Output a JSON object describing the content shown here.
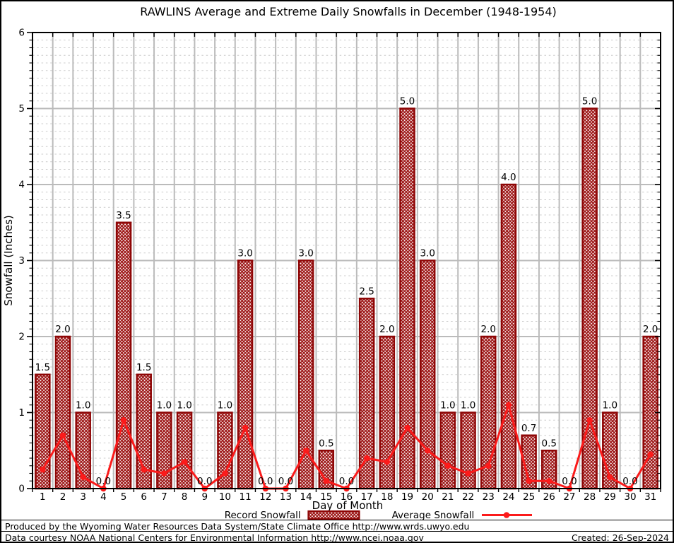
{
  "chart_data": {
    "type": "bar+line",
    "title": "RAWLINS Average and Extreme Daily Snowfalls in December (1948-1954)",
    "xlabel": "Day of Month",
    "ylabel": "Snowfall (Inches)",
    "ylim": [
      0,
      6
    ],
    "y_major_ticks": [
      0,
      1,
      2,
      3,
      4,
      5,
      6
    ],
    "y_minor_step": 0.1,
    "grid": true,
    "legend_position": "bottom",
    "categories": [
      1,
      2,
      3,
      4,
      5,
      6,
      7,
      8,
      9,
      10,
      11,
      12,
      13,
      14,
      15,
      16,
      17,
      18,
      19,
      20,
      21,
      22,
      23,
      24,
      25,
      26,
      27,
      28,
      29,
      30,
      31
    ],
    "series": [
      {
        "name": "Record Snowfall",
        "type": "bar",
        "values": [
          1.5,
          2.0,
          1.0,
          0.0,
          3.5,
          1.5,
          1.0,
          1.0,
          0.0,
          1.0,
          3.0,
          0.0,
          0.0,
          3.0,
          0.5,
          0.0,
          2.5,
          2.0,
          5.0,
          3.0,
          1.0,
          1.0,
          2.0,
          4.0,
          0.7,
          0.5,
          0.0,
          5.0,
          1.0,
          0.0,
          2.0
        ],
        "bar_labels": [
          "1.5",
          "2.0",
          "1.0",
          "0.0",
          "3.5",
          "1.5",
          "1.0",
          "1.0",
          "0.0",
          "1.0",
          "3.0",
          "0.0",
          "0.0",
          "3.0",
          "0.5",
          "0.0",
          "2.5",
          "2.0",
          "5.0",
          "3.0",
          "1.0",
          "1.0",
          "2.0",
          "4.0",
          "0.7",
          "0.5",
          "0.0",
          "5.0",
          "1.0",
          "0.0",
          "2.0"
        ]
      },
      {
        "name": "Average Snowfall",
        "type": "line",
        "values": [
          0.25,
          0.7,
          0.15,
          0.0,
          0.9,
          0.25,
          0.2,
          0.35,
          0.0,
          0.2,
          0.8,
          0.0,
          0.0,
          0.5,
          0.1,
          0.0,
          0.4,
          0.35,
          0.8,
          0.5,
          0.3,
          0.2,
          0.3,
          1.1,
          0.1,
          0.1,
          0.0,
          0.9,
          0.15,
          0.0,
          0.45
        ]
      }
    ],
    "colors": {
      "bar_edge": "#8e0606",
      "bar_hatch": "#9a0f0f",
      "line": "#fb1b1b",
      "grid_major": "#bbbbbb",
      "grid_minor": "#cccccc",
      "axis": "#000000",
      "background": "#ffffff"
    }
  },
  "footer": {
    "line1": "Produced by the Wyoming Water Resources Data System/State Climate Office http://www.wrds.uwyo.edu",
    "line2": "Data courtesy NOAA National Centers for Environmental Information http://www.ncei.noaa.gov",
    "created": "Created: 26-Sep-2024"
  }
}
